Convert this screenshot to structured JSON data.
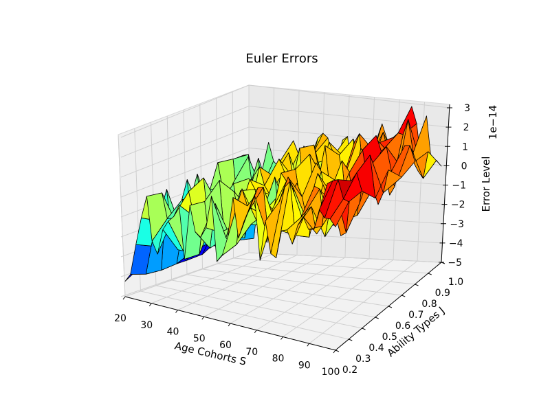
{
  "chart_data": {
    "type": "surface3d",
    "title": "Euler Errors",
    "xlabel": "Age Cohorts S",
    "ylabel": "Ability Types J",
    "zlabel": "Error Level",
    "z_offset_label": "1e−14",
    "xlim": [
      20,
      100
    ],
    "ylim": [
      0.2,
      1.0
    ],
    "zlim": [
      -5,
      3
    ],
    "x_ticks": [
      "20",
      "30",
      "40",
      "50",
      "60",
      "70",
      "80",
      "90",
      "100"
    ],
    "y_ticks": [
      "0.2",
      "0.3",
      "0.4",
      "0.5",
      "0.6",
      "0.7",
      "0.8",
      "0.9",
      "1.0"
    ],
    "z_ticks": [
      "3",
      "2",
      "1",
      "0",
      "−1",
      "−2",
      "−3",
      "−4",
      "−5"
    ],
    "colormap": "jet",
    "grid": true,
    "z_range_approx": [
      -4.5,
      2.5
    ]
  }
}
